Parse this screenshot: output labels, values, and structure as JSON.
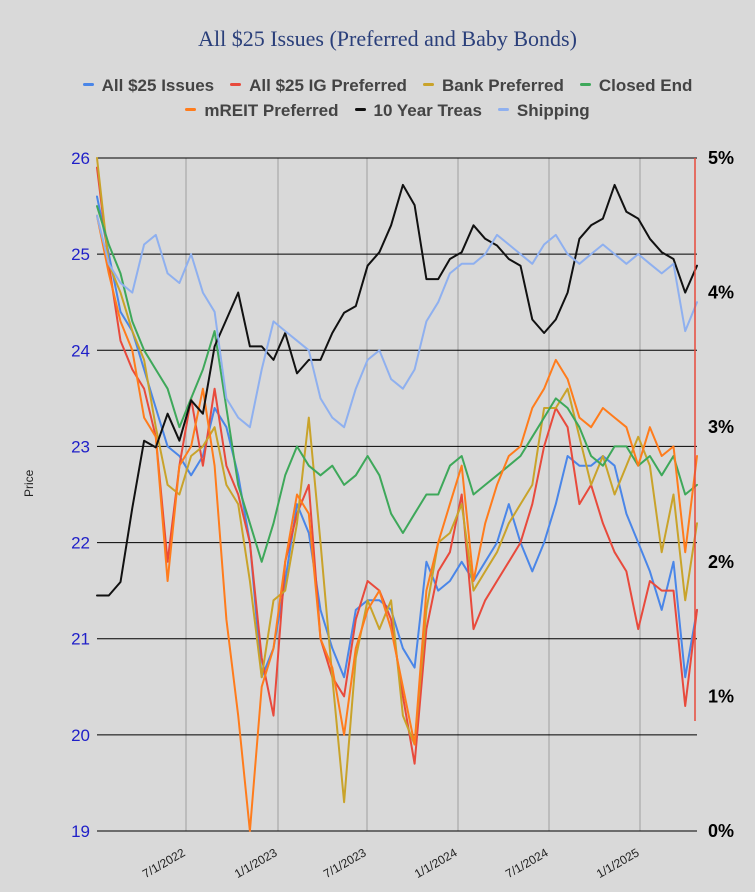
{
  "chart_data": {
    "type": "line",
    "title": "All $25 Issues (Preferred and Baby Bonds)",
    "ylabel": "Price",
    "ylim": [
      19,
      26
    ],
    "y_right_lim": [
      0,
      5
    ],
    "y_right_ticks": [
      "0%",
      "1%",
      "2%",
      "3%",
      "4%",
      "5%"
    ],
    "y_left_ticks": [
      "19",
      "20",
      "21",
      "22",
      "23",
      "24",
      "25",
      "26"
    ],
    "x_ticks": [
      "7/1/2022",
      "1/1/2023",
      "7/1/2023",
      "1/1/2024",
      "7/1/2024",
      "1/1/2025"
    ],
    "x_range": [
      "2022-01",
      "2025-05"
    ],
    "grid": true,
    "legend_placement": "top",
    "series": [
      {
        "name": "All $25 Issues",
        "color": "#4a86e8",
        "axis": "left",
        "values": [
          25.6,
          25.0,
          24.4,
          24.2,
          23.8,
          23.4,
          23.0,
          22.9,
          22.7,
          22.9,
          23.4,
          23.2,
          22.7,
          22.0,
          20.6,
          20.9,
          21.6,
          22.4,
          22.1,
          21.3,
          20.9,
          20.6,
          21.3,
          21.4,
          21.4,
          21.3,
          20.9,
          20.7,
          21.8,
          21.5,
          21.6,
          21.8,
          21.6,
          21.8,
          22.0,
          22.4,
          22.0,
          21.7,
          22.0,
          22.4,
          22.9,
          22.8,
          22.8,
          22.9,
          22.8,
          22.3,
          22.0,
          21.7,
          21.3,
          21.8,
          20.6,
          21.3
        ]
      },
      {
        "name": "All $25 IG Preferred",
        "color": "#e84a3c",
        "axis": "left",
        "values": [
          25.9,
          24.9,
          24.1,
          23.8,
          23.6,
          23.1,
          21.8,
          22.8,
          23.5,
          22.8,
          23.6,
          22.8,
          22.5,
          22.0,
          20.8,
          20.2,
          21.8,
          22.3,
          22.6,
          21.0,
          20.6,
          20.4,
          21.2,
          21.6,
          21.5,
          21.2,
          20.4,
          19.7,
          21.1,
          21.7,
          21.9,
          22.5,
          21.1,
          21.4,
          21.6,
          21.8,
          22.0,
          22.4,
          23.0,
          23.4,
          23.2,
          22.4,
          22.6,
          22.2,
          21.9,
          21.7,
          21.1,
          21.6,
          21.5,
          21.5,
          20.3,
          21.3
        ]
      },
      {
        "name": "Bank Preferred",
        "color": "#c9a32a",
        "axis": "left",
        "values": [
          26.0,
          24.9,
          24.6,
          24.2,
          23.9,
          23.2,
          22.6,
          22.5,
          22.9,
          23.0,
          23.2,
          22.6,
          22.4,
          21.6,
          20.6,
          21.4,
          21.5,
          22.2,
          23.3,
          22.0,
          20.6,
          19.3,
          20.8,
          21.4,
          21.1,
          21.4,
          20.2,
          19.9,
          21.3,
          22.0,
          22.1,
          22.4,
          21.5,
          21.7,
          21.9,
          22.2,
          22.4,
          22.6,
          23.4,
          23.4,
          23.6,
          23.1,
          22.6,
          22.9,
          22.5,
          22.8,
          23.1,
          22.8,
          21.9,
          22.5,
          21.4,
          22.2
        ]
      },
      {
        "name": "Closed End",
        "color": "#3ea85a",
        "axis": "left",
        "values": [
          25.5,
          25.1,
          24.8,
          24.3,
          24.0,
          23.8,
          23.6,
          23.2,
          23.5,
          23.8,
          24.2,
          23.4,
          22.6,
          22.2,
          21.8,
          22.2,
          22.7,
          23.0,
          22.8,
          22.7,
          22.8,
          22.6,
          22.7,
          22.9,
          22.7,
          22.3,
          22.1,
          22.3,
          22.5,
          22.5,
          22.8,
          22.9,
          22.5,
          22.6,
          22.7,
          22.8,
          22.9,
          23.1,
          23.3,
          23.5,
          23.4,
          23.2,
          22.9,
          22.8,
          23.0,
          23.0,
          22.8,
          22.9,
          22.7,
          22.9,
          22.5,
          22.6
        ]
      },
      {
        "name": "mREIT Preferred",
        "color": "#ff7c1c",
        "axis": "left",
        "values": [
          25.4,
          24.8,
          24.3,
          24.0,
          23.3,
          23.1,
          21.6,
          22.8,
          23.0,
          23.6,
          22.8,
          21.2,
          20.2,
          19.0,
          20.5,
          20.9,
          21.8,
          22.5,
          22.3,
          21.0,
          20.7,
          20.0,
          20.9,
          21.3,
          21.5,
          21.1,
          20.5,
          19.9,
          21.5,
          22.0,
          22.4,
          22.8,
          21.6,
          22.2,
          22.6,
          22.9,
          23.0,
          23.4,
          23.6,
          23.9,
          23.7,
          23.3,
          23.2,
          23.4,
          23.3,
          23.2,
          22.8,
          23.2,
          22.9,
          23.0,
          21.9,
          22.9
        ]
      },
      {
        "name": "10 Year Treas",
        "color": "#111111",
        "axis": "right",
        "values": [
          1.75,
          1.75,
          1.85,
          2.4,
          2.9,
          2.85,
          3.1,
          2.9,
          3.2,
          3.1,
          3.6,
          3.8,
          4.0,
          3.6,
          3.6,
          3.5,
          3.7,
          3.4,
          3.5,
          3.5,
          3.7,
          3.85,
          3.9,
          4.2,
          4.3,
          4.5,
          4.8,
          4.65,
          4.1,
          4.1,
          4.25,
          4.3,
          4.5,
          4.4,
          4.35,
          4.25,
          4.2,
          3.8,
          3.7,
          3.8,
          4.0,
          4.4,
          4.5,
          4.55,
          4.8,
          4.6,
          4.55,
          4.4,
          4.3,
          4.25,
          4.0,
          4.2
        ]
      },
      {
        "name": "Shipping",
        "color": "#8fb0ef",
        "axis": "left",
        "values": [
          25.4,
          24.9,
          24.7,
          24.6,
          25.1,
          25.2,
          24.8,
          24.7,
          25.0,
          24.6,
          24.4,
          23.5,
          23.3,
          23.2,
          23.8,
          24.3,
          24.2,
          24.1,
          24.0,
          23.5,
          23.3,
          23.2,
          23.6,
          23.9,
          24.0,
          23.7,
          23.6,
          23.8,
          24.3,
          24.5,
          24.8,
          24.9,
          24.9,
          25.0,
          25.2,
          25.1,
          25.0,
          24.9,
          25.1,
          25.2,
          25.0,
          24.9,
          25.0,
          25.1,
          25.0,
          24.9,
          25.0,
          24.9,
          24.8,
          24.9,
          24.2,
          24.5
        ]
      }
    ]
  },
  "colors": {
    "grid": "#000000",
    "right_axis_line": "#e84a3c",
    "left_tick_text": "#1f1fc8"
  }
}
